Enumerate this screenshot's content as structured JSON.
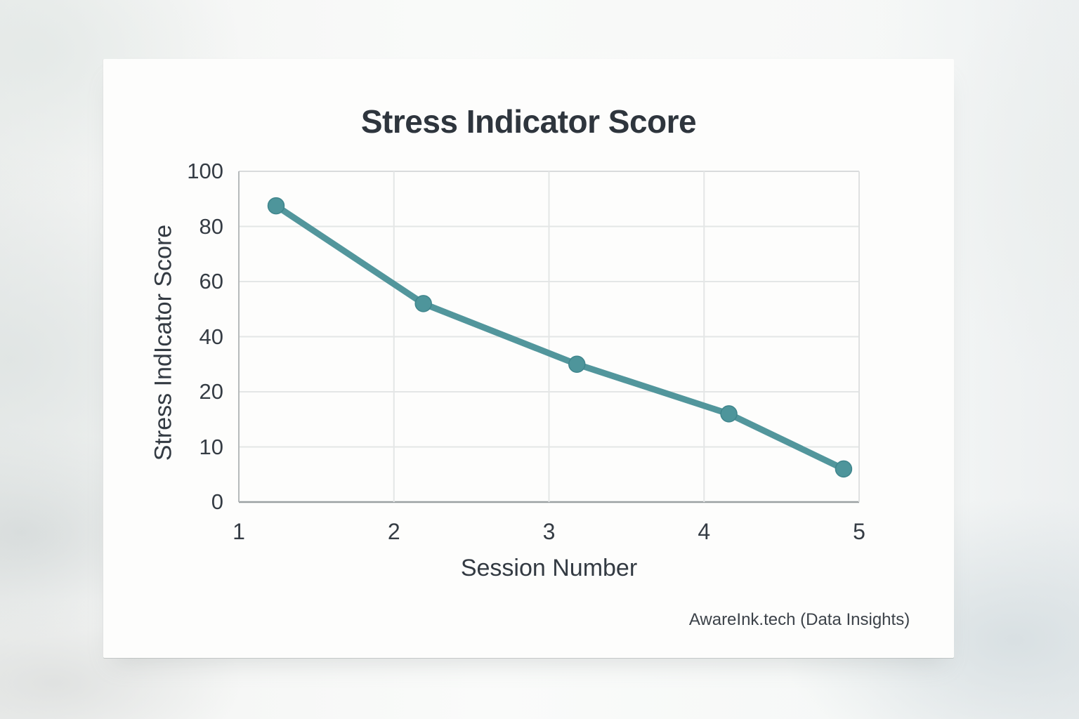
{
  "watermark": "AwareInk.tech (Data Insights)",
  "chart_data": {
    "type": "line",
    "title": "Stress Indicator Score",
    "xlabel": "Session Number",
    "ylabel": "Stress IndIcator Score",
    "x_ticks": [
      "1",
      "2",
      "3",
      "4",
      "5"
    ],
    "x_range": [
      1,
      5
    ],
    "y_ticks": [
      "100",
      "80",
      "60",
      "40",
      "20",
      "10",
      "0"
    ],
    "y_tick_values": [
      100,
      80,
      60,
      40,
      20,
      10,
      0
    ],
    "y_axis_note": "tick labels evenly spaced (non-linear scale as drawn)",
    "grid": true,
    "legend": false,
    "series": [
      {
        "name": "Stress Indicator Score",
        "x": [
          1.24,
          2.19,
          3.18,
          4.16,
          4.9
        ],
        "values": [
          87.5,
          52,
          30,
          16,
          6
        ]
      }
    ],
    "colors": {
      "line": "#52969c",
      "marker": "#4e959b",
      "marker_rim": "#3f858c",
      "grid": "#e4e6e6",
      "grid_top": "#d9dbdc",
      "grid_right": "#dfe1e1",
      "axis_left": "#b6babb",
      "axis_bottom": "#9aa0a2"
    }
  }
}
